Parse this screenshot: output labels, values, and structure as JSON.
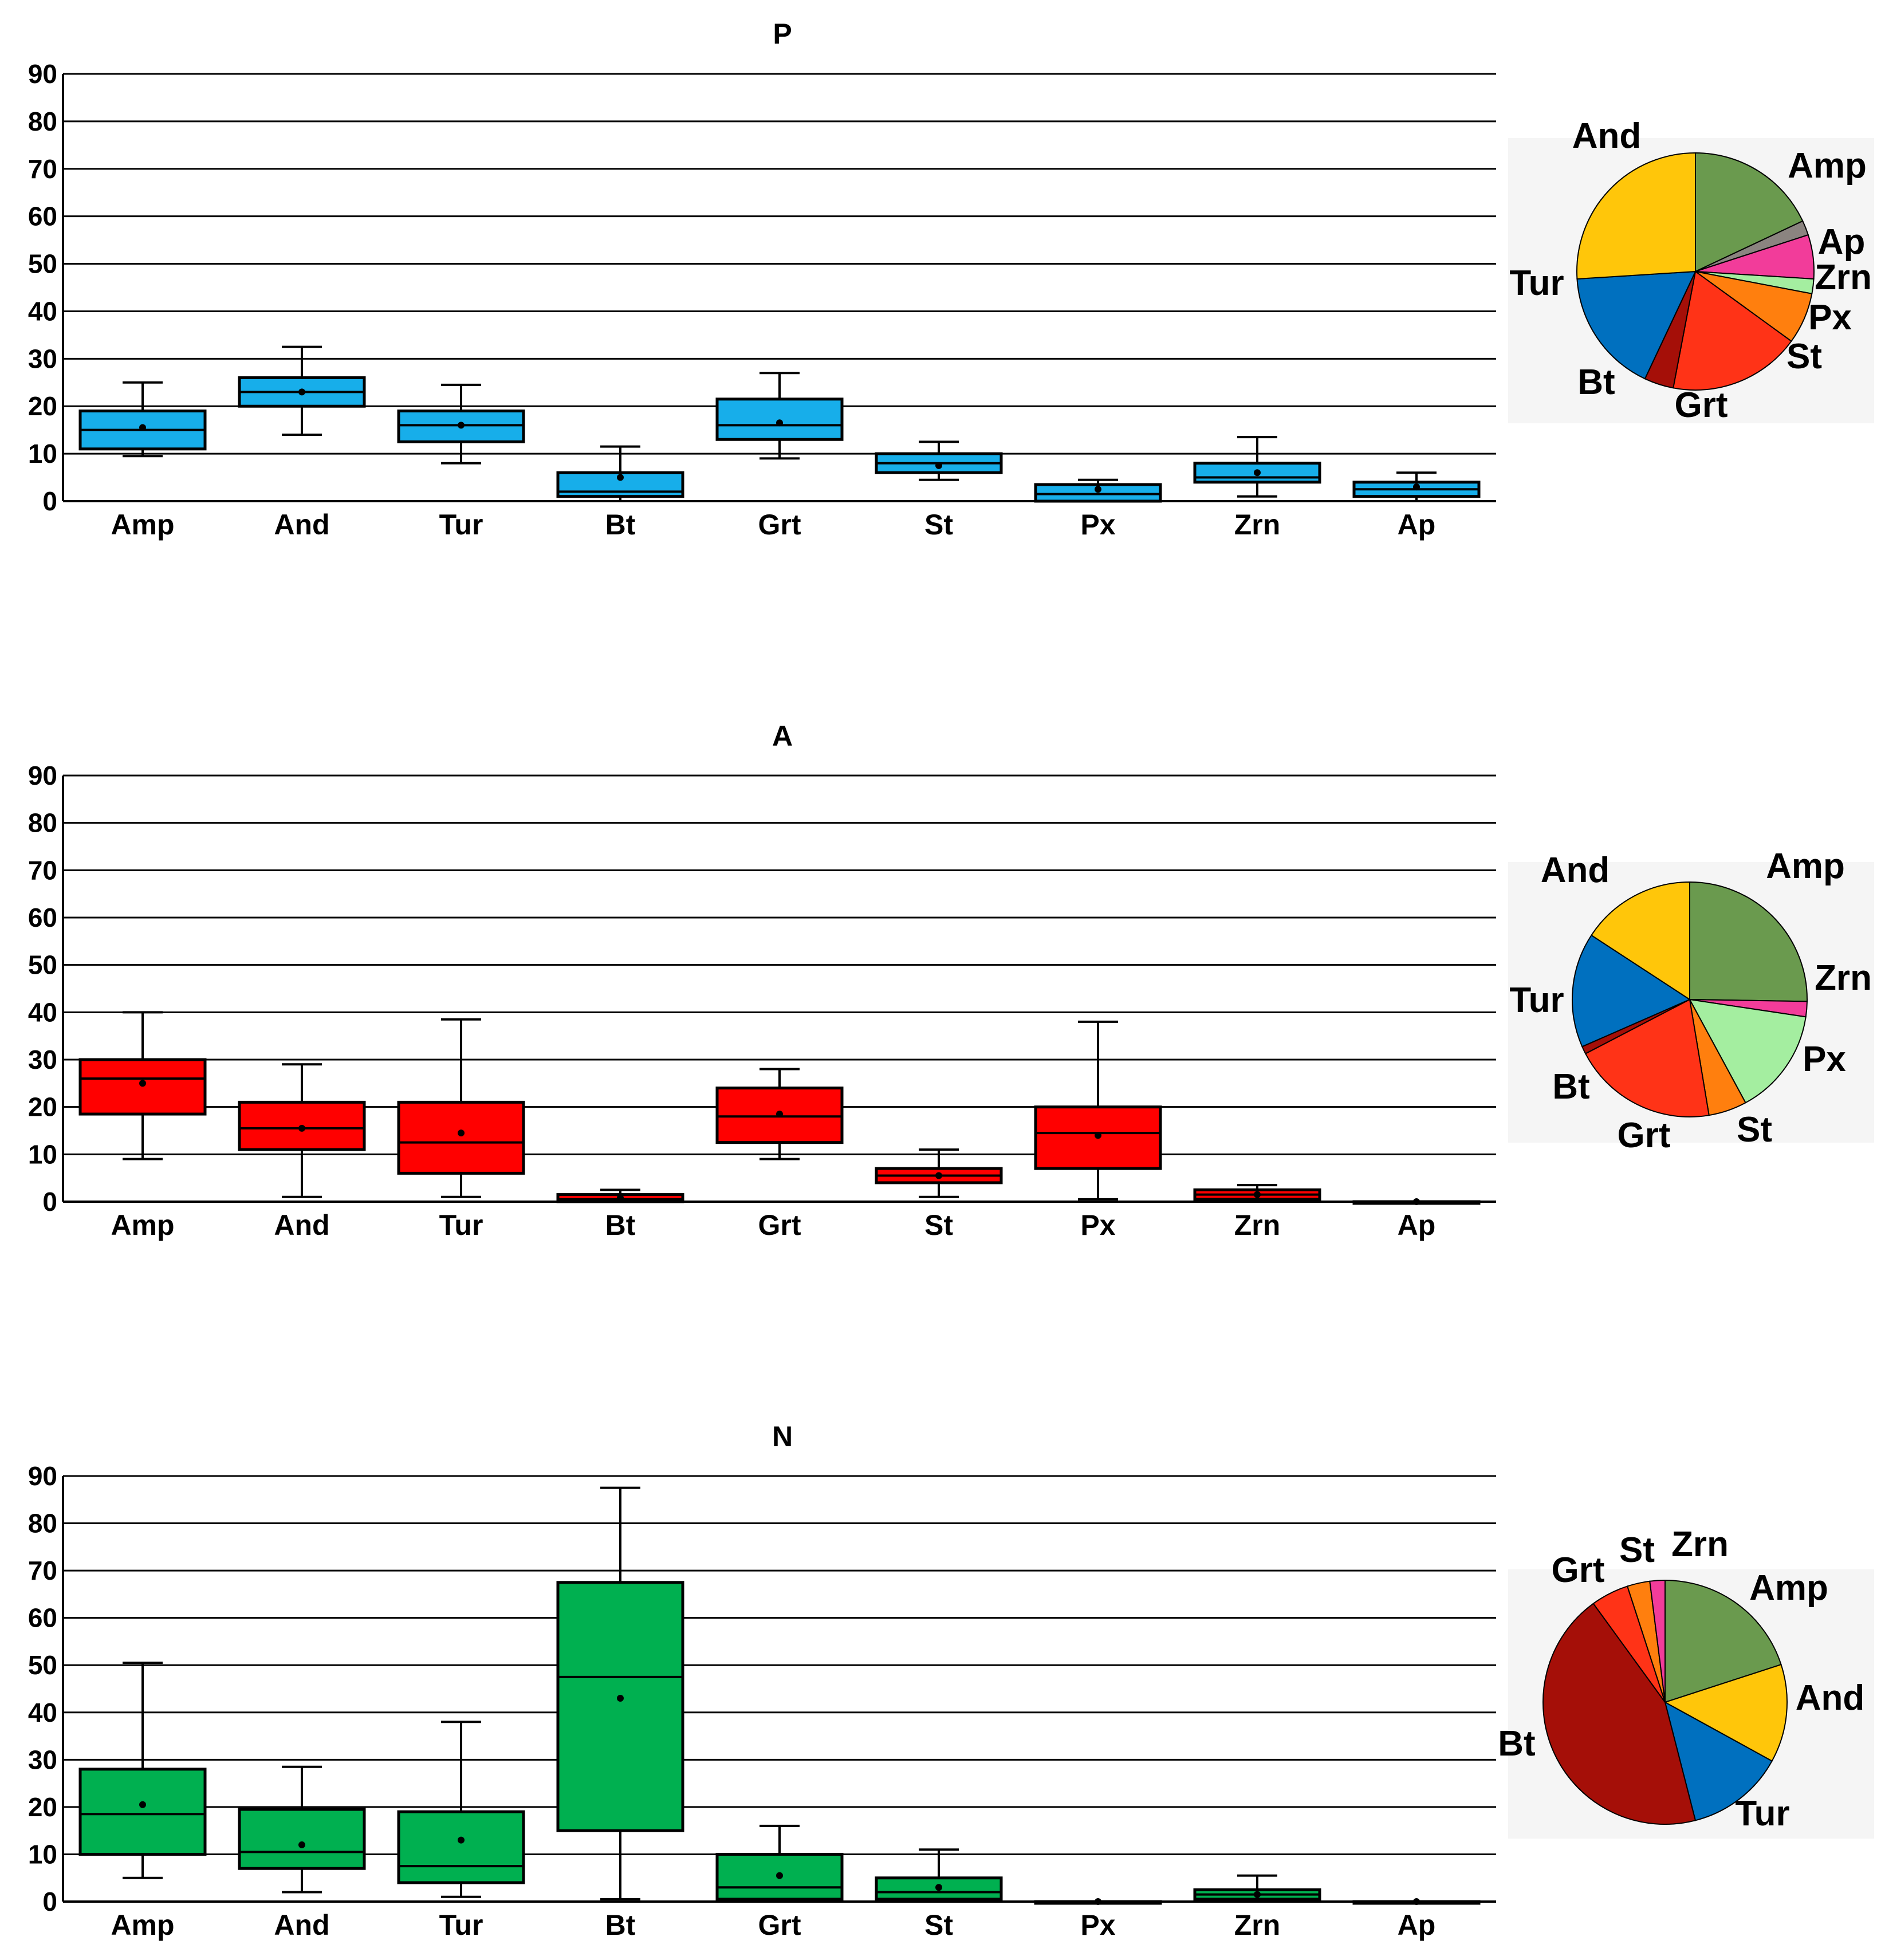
{
  "chart_data": [
    {
      "type": "box",
      "title": "P",
      "categories": [
        "Amp",
        "And",
        "Tur",
        "Bt",
        "Grt",
        "St",
        "Px",
        "Zrn",
        "Ap"
      ],
      "ylim": [
        0,
        90
      ],
      "yticks": [
        0,
        10,
        20,
        30,
        40,
        50,
        60,
        70,
        80,
        90
      ],
      "grid": true,
      "box_color": "#17AEEA",
      "boxes": [
        {
          "min": 9.5,
          "q1": 11,
          "median": 15,
          "q3": 19,
          "max": 25,
          "mean": 15.5
        },
        {
          "min": 14,
          "q1": 20,
          "median": 23,
          "q3": 26,
          "max": 32.5,
          "mean": 23
        },
        {
          "min": 8,
          "q1": 12.5,
          "median": 16,
          "q3": 19,
          "max": 24.5,
          "mean": 16
        },
        {
          "min": 0,
          "q1": 1,
          "median": 2,
          "q3": 6,
          "max": 11.5,
          "mean": 5
        },
        {
          "min": 9,
          "q1": 13,
          "median": 16,
          "q3": 21.5,
          "max": 27,
          "mean": 16.5
        },
        {
          "min": 4.5,
          "q1": 6,
          "median": 8,
          "q3": 10,
          "max": 12.5,
          "mean": 7.5
        },
        {
          "min": 0,
          "q1": 0,
          "median": 1.5,
          "q3": 3.5,
          "max": 4.5,
          "mean": 2.5
        },
        {
          "min": 1,
          "q1": 4,
          "median": 5,
          "q3": 8,
          "max": 13.5,
          "mean": 6
        },
        {
          "min": 0,
          "q1": 1,
          "median": 2.5,
          "q3": 4,
          "max": 6,
          "mean": 3
        }
      ],
      "pie": {
        "slices": [
          {
            "label": "Amp",
            "value": 18,
            "color": "#6A9A4E"
          },
          {
            "label": "Ap",
            "value": 2,
            "color": "#8B8480"
          },
          {
            "label": "Zrn",
            "value": 6,
            "color": "#F23C9A"
          },
          {
            "label": "Px",
            "value": 2,
            "color": "#A4EEA0"
          },
          {
            "label": "St",
            "value": 7,
            "color": "#FF7F0E"
          },
          {
            "label": "Grt",
            "value": 18,
            "color": "#FF3317"
          },
          {
            "label": "Bt",
            "value": 4,
            "color": "#A50F08"
          },
          {
            "label": "Tur",
            "value": 17,
            "color": "#0070BF"
          },
          {
            "label": "And",
            "value": 26,
            "color": "#FFC60A"
          }
        ]
      }
    },
    {
      "type": "box",
      "title": "A",
      "categories": [
        "Amp",
        "And",
        "Tur",
        "Bt",
        "Grt",
        "St",
        "Px",
        "Zrn",
        "Ap"
      ],
      "ylim": [
        0,
        90
      ],
      "yticks": [
        0,
        10,
        20,
        30,
        40,
        50,
        60,
        70,
        80,
        90
      ],
      "grid": true,
      "box_color": "#FF0000",
      "boxes": [
        {
          "min": 9,
          "q1": 18.5,
          "median": 26,
          "q3": 30,
          "max": 40,
          "mean": 25
        },
        {
          "min": 1,
          "q1": 11,
          "median": 15.5,
          "q3": 21,
          "max": 29,
          "mean": 15.5
        },
        {
          "min": 1,
          "q1": 6,
          "median": 12.5,
          "q3": 21,
          "max": 38.5,
          "mean": 14.5
        },
        {
          "min": 0,
          "q1": 0,
          "median": 0.5,
          "q3": 1.5,
          "max": 2.5,
          "mean": 0.8
        },
        {
          "min": 9,
          "q1": 12.5,
          "median": 18,
          "q3": 24,
          "max": 28,
          "mean": 18.5
        },
        {
          "min": 1,
          "q1": 4,
          "median": 5.5,
          "q3": 7,
          "max": 11,
          "mean": 5.5
        },
        {
          "min": 0.5,
          "q1": 7,
          "median": 14.5,
          "q3": 20,
          "max": 38,
          "mean": 14
        },
        {
          "min": 0,
          "q1": 0.5,
          "median": 1.5,
          "q3": 2.5,
          "max": 3.5,
          "mean": 1.5
        },
        {
          "min": 0,
          "q1": 0,
          "median": 0,
          "q3": 0,
          "max": 0,
          "mean": 0
        }
      ],
      "pie": {
        "slices": [
          {
            "label": "Amp",
            "value": 24,
            "color": "#6A9A4E"
          },
          {
            "label": "Zrn",
            "value": 2,
            "color": "#F23C9A"
          },
          {
            "label": "Px",
            "value": 14,
            "color": "#A4EEA0"
          },
          {
            "label": "St",
            "value": 5,
            "color": "#FF7F0E"
          },
          {
            "label": "Grt",
            "value": 19,
            "color": "#FF3317"
          },
          {
            "label": "Bt",
            "value": 1,
            "color": "#A50F08"
          },
          {
            "label": "Tur",
            "value": 15,
            "color": "#0070BF"
          },
          {
            "label": "And",
            "value": 15,
            "color": "#FFC60A"
          }
        ]
      }
    },
    {
      "type": "box",
      "title": "N",
      "categories": [
        "Amp",
        "And",
        "Tur",
        "Bt",
        "Grt",
        "St",
        "Px",
        "Zrn",
        "Ap"
      ],
      "ylim": [
        0,
        90
      ],
      "yticks": [
        0,
        10,
        20,
        30,
        40,
        50,
        60,
        70,
        80,
        90
      ],
      "grid": true,
      "box_color": "#00B050",
      "boxes": [
        {
          "min": 5,
          "q1": 10,
          "median": 18.5,
          "q3": 28,
          "max": 50.5,
          "mean": 20.5
        },
        {
          "min": 2,
          "q1": 7,
          "median": 10.5,
          "q3": 19.5,
          "max": 28.5,
          "mean": 12
        },
        {
          "min": 1,
          "q1": 4,
          "median": 7.5,
          "q3": 19,
          "max": 38,
          "mean": 13
        },
        {
          "min": 0.5,
          "q1": 15,
          "median": 47.5,
          "q3": 67.5,
          "max": 87.5,
          "mean": 43
        },
        {
          "min": 0,
          "q1": 0.5,
          "median": 3,
          "q3": 10,
          "max": 16,
          "mean": 5.5
        },
        {
          "min": 0,
          "q1": 0.5,
          "median": 2,
          "q3": 5,
          "max": 11,
          "mean": 3
        },
        {
          "min": 0,
          "q1": 0,
          "median": 0,
          "q3": 0,
          "max": 0,
          "mean": 0
        },
        {
          "min": 0,
          "q1": 0.5,
          "median": 1.5,
          "q3": 2.5,
          "max": 5.5,
          "mean": 1.5
        },
        {
          "min": 0,
          "q1": 0,
          "median": 0,
          "q3": 0,
          "max": 0,
          "mean": 0
        }
      ],
      "pie": {
        "slices": [
          {
            "label": "Amp",
            "value": 20,
            "color": "#6A9A4E"
          },
          {
            "label": "And",
            "value": 13,
            "color": "#FFC60A"
          },
          {
            "label": "Tur",
            "value": 13,
            "color": "#0070BF"
          },
          {
            "label": "Bt",
            "value": 44,
            "color": "#A50F08"
          },
          {
            "label": "Grt",
            "value": 5,
            "color": "#FF3317"
          },
          {
            "label": "St",
            "value": 3,
            "color": "#FF7F0E"
          },
          {
            "label": "Zrn",
            "value": 2,
            "color": "#F23C9A"
          }
        ]
      }
    }
  ]
}
